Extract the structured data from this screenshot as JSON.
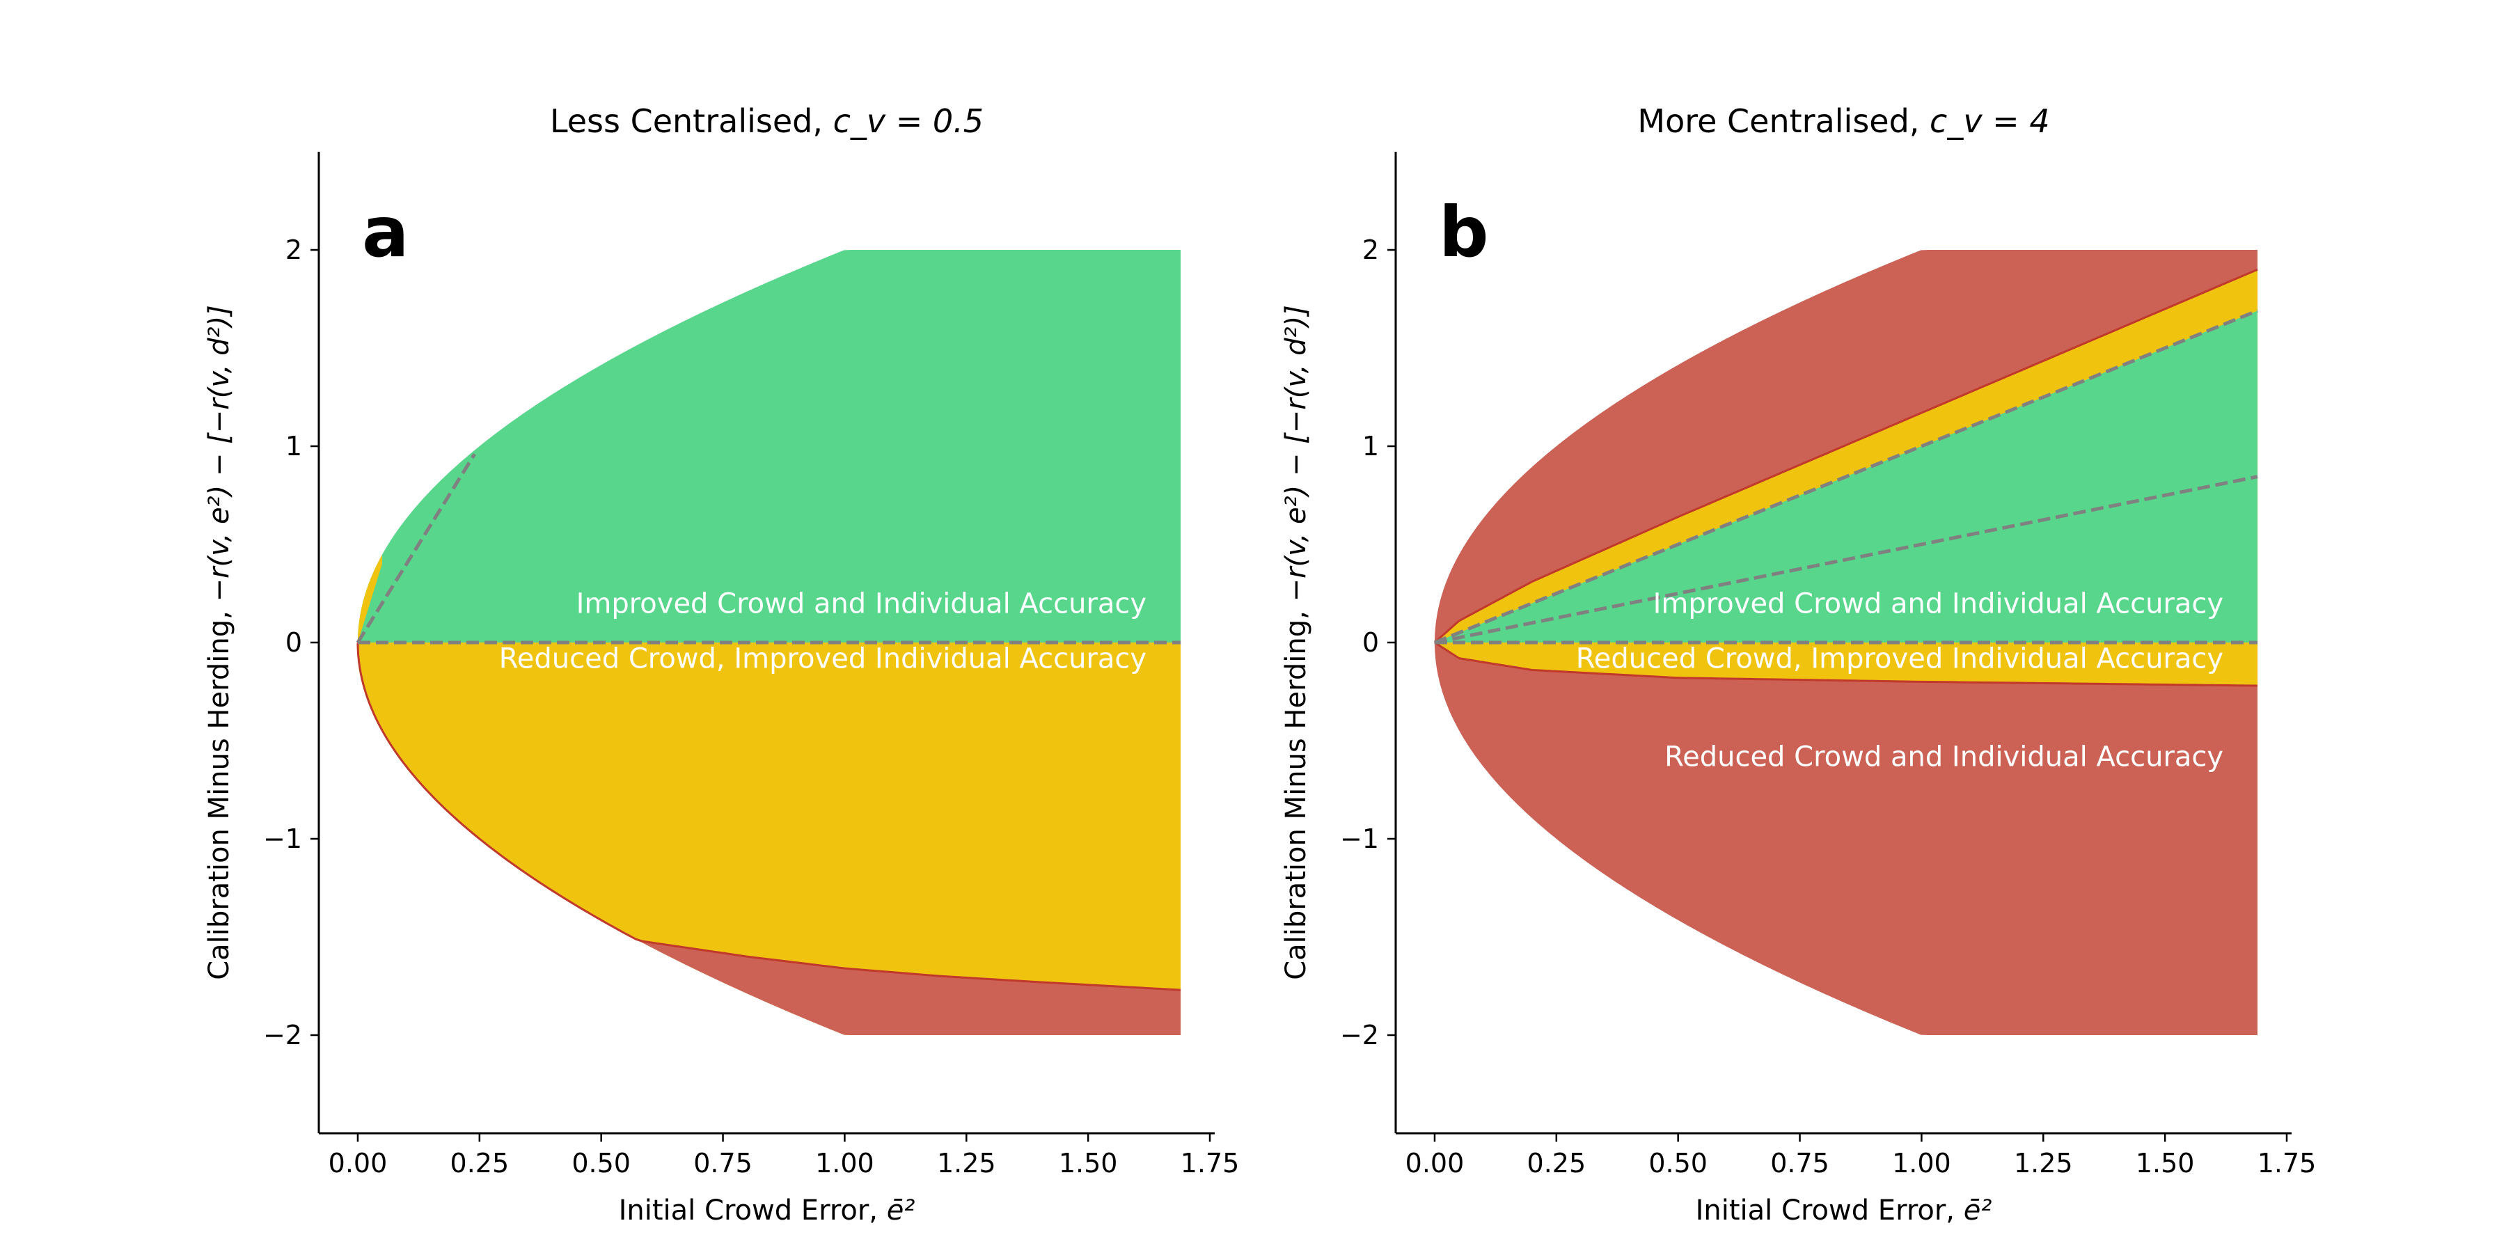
{
  "chart_data": [
    {
      "type": "area",
      "title": "Less Centralised, ",
      "title_math": "c_v = 0.5",
      "c_v": 0.5,
      "panel_letter": "a",
      "xlabel": "Initial Crowd Error, ",
      "xlabel_math": "ē²",
      "ylabel": "Calibration Minus Herding, ",
      "ylabel_math": "−r(v, e²) − [−r(v, d²)]",
      "xlim": [
        -0.08,
        1.76
      ],
      "ylim": [
        -2.5,
        2.5
      ],
      "xticks": [
        0.0,
        0.25,
        0.5,
        0.75,
        1.0,
        1.25,
        1.5,
        1.75
      ],
      "xtick_labels": [
        "0.00",
        "0.25",
        "0.50",
        "0.75",
        "1.00",
        "1.25",
        "1.50",
        "1.75"
      ],
      "yticks": [
        -2,
        -1,
        0,
        1,
        2
      ],
      "ytick_labels": [
        "−2",
        "−1",
        "0",
        "1",
        "2"
      ],
      "grid": false,
      "region_clip": {
        "x_max": 1.69,
        "y_min": -2,
        "y_max": 2
      },
      "outer_boundary": "y = ±2·sqrt(x)",
      "regions": [
        {
          "name": "Improved Crowd and Individual Accuracy",
          "color": "#57d68c",
          "boundary": {
            "x": [
              0.0,
              1.69
            ],
            "y": [
              0.0,
              0.0
            ]
          }
        },
        {
          "name": "Reduced Crowd, Improved Individual Accuracy",
          "color": "#f0c30f",
          "boundary": {
            "x": [
              0.58,
              0.8,
              1.0,
              1.2,
              1.4,
              1.69
            ],
            "y": [
              -1.52,
              -1.6,
              -1.66,
              -1.7,
              -1.73,
              -1.77
            ]
          }
        },
        {
          "name": "Reduced Crowd and Individual Accuracy",
          "color": "#cc6155"
        }
      ],
      "dashed_lines": [
        {
          "x": [
            0.0,
            1.69
          ],
          "y": [
            0.0,
            0.0
          ]
        },
        {
          "x": [
            0.0,
            0.24
          ],
          "y": [
            0.0,
            0.96
          ]
        }
      ],
      "annotations": [
        {
          "text": "Improved Crowd and Individual Accuracy",
          "x": 1.62,
          "y": 0.2
        },
        {
          "text": "Reduced Crowd, Improved Individual Accuracy",
          "x": 1.62,
          "y": -0.08
        }
      ]
    },
    {
      "type": "area",
      "title": "More Centralised, ",
      "title_math": "c_v = 4",
      "c_v": 4,
      "panel_letter": "b",
      "xlabel": "Initial Crowd Error, ",
      "xlabel_math": "ē²",
      "ylabel": "Calibration Minus Herding, ",
      "ylabel_math": "−r(v, e²) − [−r(v, d²)]",
      "xlim": [
        -0.08,
        1.76
      ],
      "ylim": [
        -2.5,
        2.5
      ],
      "xticks": [
        0.0,
        0.25,
        0.5,
        0.75,
        1.0,
        1.25,
        1.5,
        1.75
      ],
      "xtick_labels": [
        "0.00",
        "0.25",
        "0.50",
        "0.75",
        "1.00",
        "1.25",
        "1.50",
        "1.75"
      ],
      "yticks": [
        -2,
        -1,
        0,
        1,
        2
      ],
      "ytick_labels": [
        "−2",
        "−1",
        "0",
        "1",
        "2"
      ],
      "grid": false,
      "region_clip": {
        "x_max": 1.69,
        "y_min": -2,
        "y_max": 2
      },
      "outer_boundary": "y = ±2·sqrt(x)",
      "regions": [
        {
          "name": "Reduced Crowd and Individual Accuracy",
          "color": "#cc6155",
          "upper_boundary": {
            "x": [
              0.0,
              0.05,
              0.2,
              0.5,
              1.0,
              1.69
            ],
            "y": [
              0.0,
              0.11,
              0.31,
              0.64,
              1.17,
              1.9
            ]
          },
          "lower_boundary": {
            "x": [
              0.0,
              0.05,
              0.2,
              0.5,
              1.0,
              1.69
            ],
            "y": [
              0.0,
              -0.08,
              -0.14,
              -0.18,
              -0.2,
              -0.22
            ]
          }
        },
        {
          "name": "Reduced Crowd, Improved Individual Accuracy",
          "color": "#f0c30f"
        },
        {
          "name": "Improved Crowd and Individual Accuracy",
          "color": "#57d68c",
          "boundary": {
            "x": [
              0.0,
              1.69
            ],
            "y": [
              0.0,
              1.69
            ]
          }
        }
      ],
      "dashed_lines": [
        {
          "x": [
            0.0,
            1.69
          ],
          "y": [
            0.0,
            0.0
          ]
        },
        {
          "x": [
            0.0,
            1.69
          ],
          "y": [
            0.0,
            0.845
          ]
        },
        {
          "x": [
            0.0,
            1.69
          ],
          "y": [
            0.0,
            1.69
          ]
        }
      ],
      "annotations": [
        {
          "text": "Improved Crowd and Individual Accuracy",
          "x": 1.62,
          "y": 0.2
        },
        {
          "text": "Reduced Crowd, Improved Individual Accuracy",
          "x": 1.62,
          "y": -0.08
        },
        {
          "text": "Reduced Crowd and Individual Accuracy",
          "x": 1.62,
          "y": -0.58
        }
      ]
    }
  ]
}
